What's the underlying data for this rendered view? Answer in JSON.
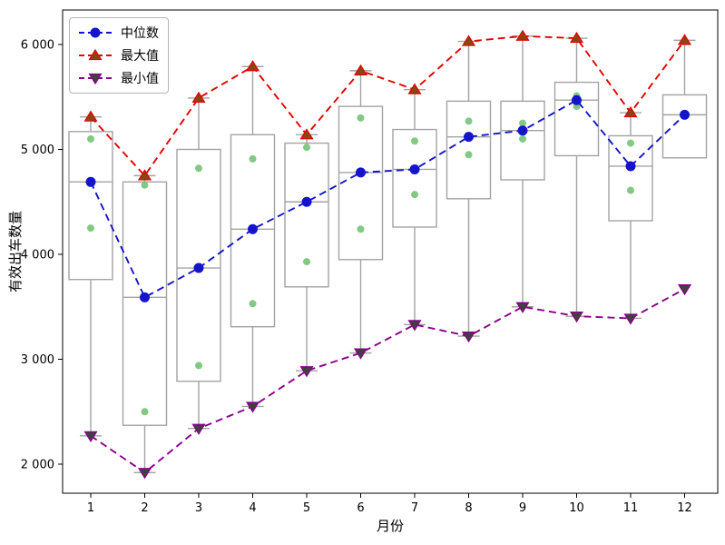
{
  "figure": {
    "background": "#ffffff"
  },
  "axes": {
    "xlabel": "月份",
    "ylabel": "有效出车数量",
    "x_tick_labels": [
      "1",
      "2",
      "3",
      "4",
      "5",
      "6",
      "7",
      "8",
      "9",
      "10",
      "11",
      "12"
    ],
    "y_tick_values": [
      2000,
      3000,
      4000,
      5000,
      6000
    ],
    "y_tick_labels": [
      "2 000",
      "3 000",
      "4 000",
      "5 000",
      "6 000"
    ]
  },
  "legend": {
    "items": [
      {
        "label": "中位数",
        "marker": "circle",
        "color": "#1414cc",
        "marker_fill": "#1414cc"
      },
      {
        "label": "最大值",
        "marker": "triangle-up",
        "color": "#e60000",
        "marker_fill": "#8b4513"
      },
      {
        "label": "最小值",
        "marker": "triangle-down",
        "color": "#8b008b",
        "marker_fill": "#404040"
      }
    ]
  },
  "colors": {
    "box_gray": "#a3a3a3",
    "point_green": "#6dbf6d",
    "median_blue": "#1414cc",
    "max_red": "#e60000",
    "min_purple": "#8b008b",
    "max_marker_fill": "#8b4513",
    "min_marker_fill": "#404040",
    "spine_black": "#000000"
  },
  "chart_data": {
    "type": "boxplot+line",
    "title": "",
    "xlabel": "月份",
    "ylabel": "有效出车数量",
    "x": [
      1,
      2,
      3,
      4,
      5,
      6,
      7,
      8,
      9,
      10,
      11,
      12
    ],
    "xlim": [
      0.45,
      12.6
    ],
    "ylim": [
      1730,
      6330
    ],
    "grid": false,
    "legend_position": "upper-left",
    "series": [
      {
        "name": "中位数",
        "style": "dashed",
        "marker": "circle",
        "values": [
          4690,
          3590,
          3870,
          4240,
          4500,
          4780,
          4810,
          5120,
          5180,
          5470,
          4840,
          5330
        ]
      },
      {
        "name": "最大值",
        "style": "dashed",
        "marker": "triangle-up",
        "values": [
          5310,
          4750,
          5490,
          5790,
          5140,
          5750,
          5570,
          6030,
          6080,
          6060,
          5350,
          6040
        ]
      },
      {
        "name": "最小值",
        "style": "dashed",
        "marker": "triangle-down",
        "values": [
          2270,
          1920,
          2340,
          2550,
          2890,
          3060,
          3330,
          3220,
          3500,
          3410,
          3390,
          3670
        ]
      }
    ],
    "boxplots": [
      {
        "month": 1,
        "q1": 3760,
        "median": 4690,
        "q3": 5170,
        "whisker_low": 2270,
        "whisker_high": 5310,
        "points": [
          5100,
          4250
        ]
      },
      {
        "month": 2,
        "q1": 2370,
        "median": 3590,
        "q3": 4690,
        "whisker_low": 1920,
        "whisker_high": 4750,
        "points": [
          4660,
          2500
        ]
      },
      {
        "month": 3,
        "q1": 2790,
        "median": 3870,
        "q3": 5000,
        "whisker_low": 2340,
        "whisker_high": 5490,
        "points": [
          4820,
          2940
        ]
      },
      {
        "month": 4,
        "q1": 3310,
        "median": 4240,
        "q3": 5140,
        "whisker_low": 2550,
        "whisker_high": 5790,
        "points": [
          4910,
          3530
        ]
      },
      {
        "month": 5,
        "q1": 3690,
        "median": 4500,
        "q3": 5060,
        "whisker_low": 2890,
        "whisker_high": 5140,
        "points": [
          5020,
          3930
        ]
      },
      {
        "month": 6,
        "q1": 3950,
        "median": 4780,
        "q3": 5410,
        "whisker_low": 3060,
        "whisker_high": 5750,
        "points": [
          5300,
          4240
        ]
      },
      {
        "month": 7,
        "q1": 4260,
        "median": 4810,
        "q3": 5190,
        "whisker_low": 3330,
        "whisker_high": 5570,
        "points": [
          5080,
          4570
        ]
      },
      {
        "month": 8,
        "q1": 4530,
        "median": 5120,
        "q3": 5460,
        "whisker_low": 3220,
        "whisker_high": 6030,
        "points": [
          5270,
          4950
        ]
      },
      {
        "month": 9,
        "q1": 4710,
        "median": 5180,
        "q3": 5460,
        "whisker_low": 3500,
        "whisker_high": 6080,
        "points": [
          5250,
          5100
        ]
      },
      {
        "month": 10,
        "q1": 4940,
        "median": 5470,
        "q3": 5640,
        "whisker_low": 3410,
        "whisker_high": 6060,
        "points": [
          5510,
          5410
        ]
      },
      {
        "month": 11,
        "q1": 4320,
        "median": 4840,
        "q3": 5130,
        "whisker_low": 3390,
        "whisker_high": 5350,
        "points": [
          5060,
          4610
        ]
      },
      {
        "month": 12,
        "q1": 4920,
        "median": 5330,
        "q3": 5520,
        "whisker_low": null,
        "whisker_high": 6040,
        "points": [
          5330
        ]
      }
    ]
  }
}
